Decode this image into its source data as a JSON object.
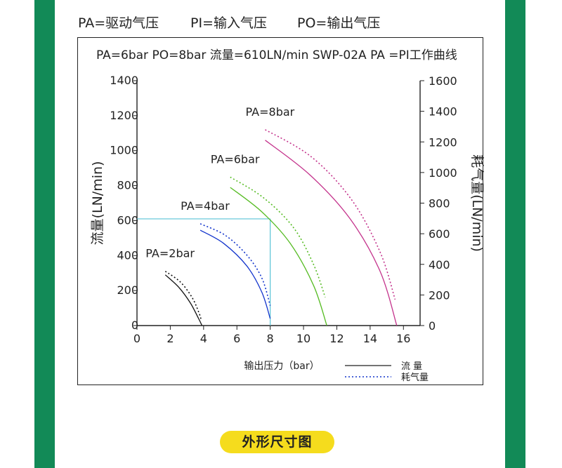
{
  "definitions": {
    "pa": "PA=驱动气压",
    "pi": "PI=输入气压",
    "po": "PO=输出气压"
  },
  "section_badge": "外形尺寸图",
  "colors": {
    "stripe": "#128a57",
    "badge": "#f5dc1d",
    "pa2": "#111111",
    "pa4": "#1133cc",
    "pa6": "#55bb22",
    "pa8": "#c4338c",
    "guide": "#59c3d6"
  },
  "chart_data": {
    "type": "line",
    "title": "PA=6bar   PO=8bar   流量=610LN/min   SWP-02A PA =PI工作曲线",
    "xlabel": "输出压力（bar）",
    "ylabel": "流量(LN/min)",
    "y2label": "耗气量(LN/min)",
    "xlim": [
      0,
      17
    ],
    "ylim": [
      0,
      1400
    ],
    "y2lim": [
      0,
      1600
    ],
    "xticks": [
      0,
      2,
      4,
      6,
      8,
      10,
      12,
      14,
      16
    ],
    "yticks": [
      0,
      200,
      400,
      600,
      800,
      1000,
      1200,
      1400
    ],
    "y2ticks": [
      0,
      200,
      400,
      600,
      800,
      1000,
      1200,
      1400,
      1600
    ],
    "legend": {
      "flow_label": "流 量",
      "consumption_label": "耗气量"
    },
    "guide_point": {
      "x": 8,
      "y": 610
    },
    "series": [
      {
        "name": "PA=2bar",
        "color": "#111111",
        "flow": [
          [
            1.7,
            290
          ],
          [
            2.5,
            220
          ],
          [
            3.2,
            130
          ],
          [
            3.7,
            40
          ],
          [
            3.9,
            0
          ]
        ],
        "consumption": [
          [
            1.7,
            355
          ],
          [
            2.6,
            285
          ],
          [
            3.3,
            185
          ],
          [
            3.7,
            90
          ],
          [
            3.85,
            40
          ]
        ]
      },
      {
        "name": "PA=4bar",
        "color": "#1133cc",
        "flow": [
          [
            3.8,
            545
          ],
          [
            5.2,
            470
          ],
          [
            6.6,
            340
          ],
          [
            7.5,
            190
          ],
          [
            8.0,
            40
          ]
        ],
        "consumption": [
          [
            3.8,
            665
          ],
          [
            5.3,
            590
          ],
          [
            6.6,
            460
          ],
          [
            7.5,
            310
          ],
          [
            8.0,
            130
          ]
        ]
      },
      {
        "name": "PA=6bar",
        "color": "#55bb22",
        "flow": [
          [
            5.6,
            790
          ],
          [
            7.5,
            650
          ],
          [
            9.2,
            470
          ],
          [
            10.6,
            230
          ],
          [
            11.4,
            0
          ]
        ],
        "consumption": [
          [
            5.6,
            970
          ],
          [
            7.6,
            835
          ],
          [
            9.4,
            640
          ],
          [
            10.6,
            400
          ],
          [
            11.3,
            185
          ]
        ]
      },
      {
        "name": "PA=8bar",
        "color": "#c4338c",
        "flow": [
          [
            7.7,
            1060
          ],
          [
            10.4,
            860
          ],
          [
            12.8,
            610
          ],
          [
            14.6,
            310
          ],
          [
            15.6,
            0
          ]
        ],
        "consumption": [
          [
            7.7,
            1280
          ],
          [
            10.5,
            1100
          ],
          [
            12.9,
            820
          ],
          [
            14.6,
            480
          ],
          [
            15.5,
            170
          ]
        ]
      }
    ]
  }
}
